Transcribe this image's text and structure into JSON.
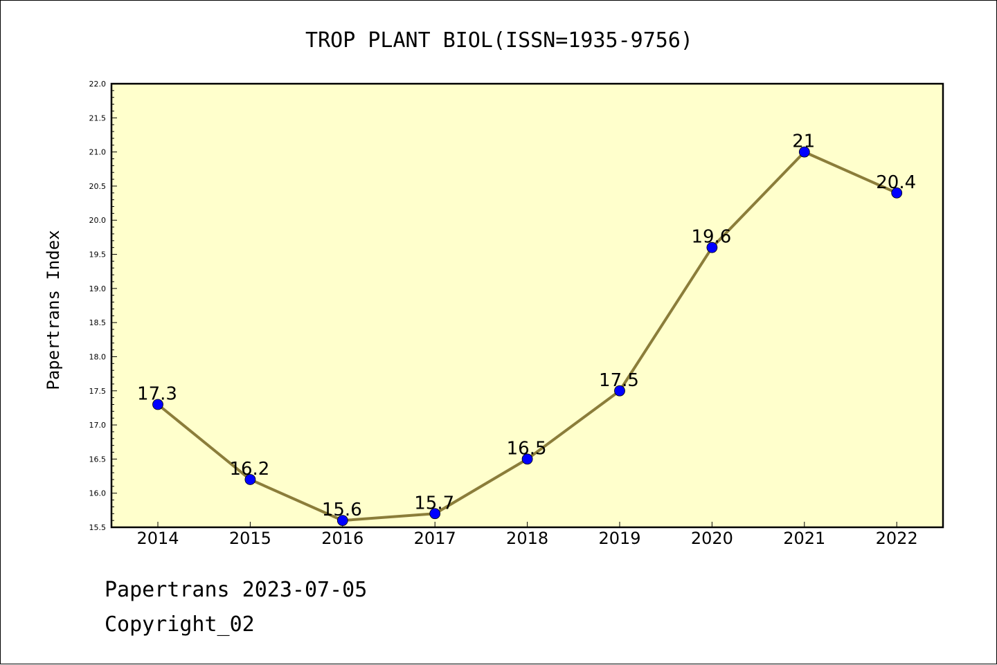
{
  "chart_data": {
    "type": "line",
    "title": "TROP PLANT BIOL(ISSN=1935-9756)",
    "xlabel": "",
    "ylabel": "Papertrans Index",
    "categories": [
      "2014",
      "2015",
      "2016",
      "2017",
      "2018",
      "2019",
      "2020",
      "2021",
      "2022"
    ],
    "values": [
      17.3,
      16.2,
      15.6,
      15.7,
      16.5,
      17.5,
      19.6,
      21,
      20.4
    ],
    "data_labels": [
      "17.3",
      "16.2",
      "15.6",
      "15.7",
      "16.5",
      "17.5",
      "19.6",
      "21",
      "20.4"
    ],
    "ylim": [
      15.5,
      22.0
    ],
    "yticks": [
      "15.5",
      "16.0",
      "16.5",
      "17.0",
      "17.5",
      "18.0",
      "18.5",
      "19.0",
      "19.5",
      "20.0",
      "20.5",
      "21.0",
      "21.5",
      "22.0"
    ],
    "grid": false,
    "colors": {
      "plot_background": "#ffffcc",
      "line": "#8b7d3a",
      "marker": "#0000ff"
    }
  },
  "footer": {
    "date_line": "Papertrans 2023-07-05",
    "copyright": "Copyright_02"
  }
}
